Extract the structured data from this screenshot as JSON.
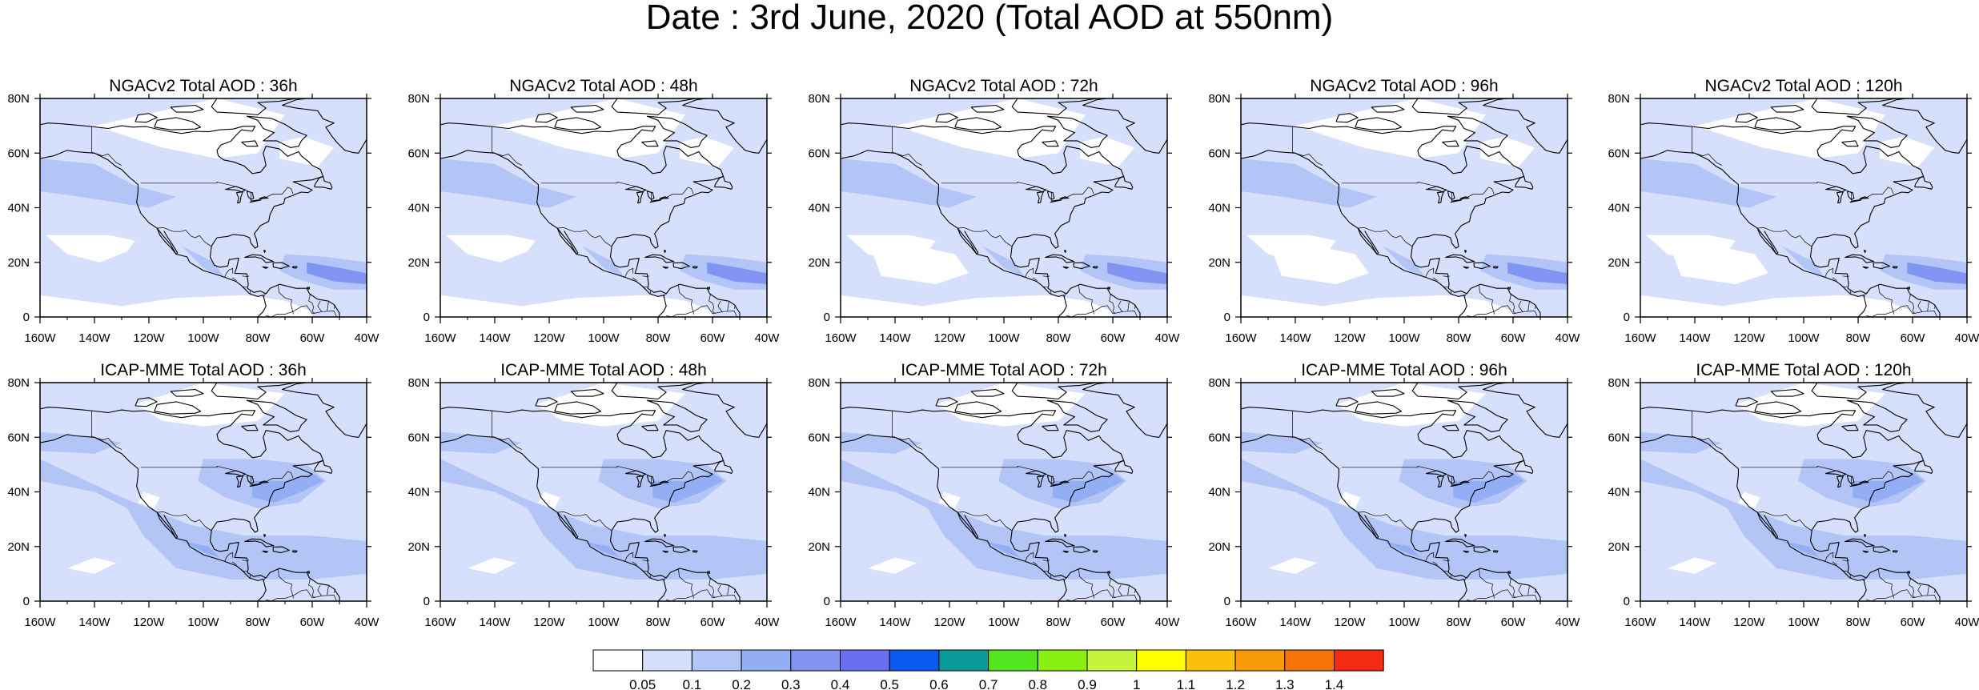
{
  "title": "Date : 3rd June, 2020 (Total AOD at 550nm)",
  "rows": [
    {
      "model": "NGACv2",
      "panels": [
        {
          "title": "NGACv2 Total AOD : 36h",
          "lead_hours": 36
        },
        {
          "title": "NGACv2 Total AOD : 48h",
          "lead_hours": 48
        },
        {
          "title": "NGACv2 Total AOD : 72h",
          "lead_hours": 72
        },
        {
          "title": "NGACv2 Total AOD : 96h",
          "lead_hours": 96
        },
        {
          "title": "NGACv2 Total AOD : 120h",
          "lead_hours": 120
        }
      ]
    },
    {
      "model": "ICAP-MME",
      "panels": [
        {
          "title": "ICAP-MME Total AOD : 36h",
          "lead_hours": 36
        },
        {
          "title": "ICAP-MME Total AOD : 48h",
          "lead_hours": 48
        },
        {
          "title": "ICAP-MME Total AOD : 72h",
          "lead_hours": 72
        },
        {
          "title": "ICAP-MME Total AOD : 96h",
          "lead_hours": 96
        },
        {
          "title": "ICAP-MME Total AOD : 120h",
          "lead_hours": 120
        }
      ]
    }
  ],
  "map_extent": {
    "lon_min": -160,
    "lon_max": -40,
    "lat_min": 0,
    "lat_max": 80
  },
  "x_tick_labels": [
    "160W",
    "140W",
    "120W",
    "100W",
    "80W",
    "60W",
    "40W"
  ],
  "y_tick_labels": [
    "0",
    "20N",
    "40N",
    "60N",
    "80N"
  ],
  "colorbar": {
    "labels": [
      "0.05",
      "0.1",
      "0.2",
      "0.3",
      "0.4",
      "0.5",
      "0.6",
      "0.7",
      "0.8",
      "0.9",
      "1",
      "1.1",
      "1.2",
      "1.3",
      "1.4"
    ],
    "colors": [
      "#ffffff",
      "#d6dffb",
      "#b3c4f7",
      "#94aef5",
      "#8294f2",
      "#6b6ef0",
      "#0a5cf0",
      "#0a9a9a",
      "#52e41e",
      "#8af012",
      "#c4f53c",
      "#ffff00",
      "#fbc10a",
      "#f99a0a",
      "#f5740a",
      "#f52a12"
    ]
  }
}
